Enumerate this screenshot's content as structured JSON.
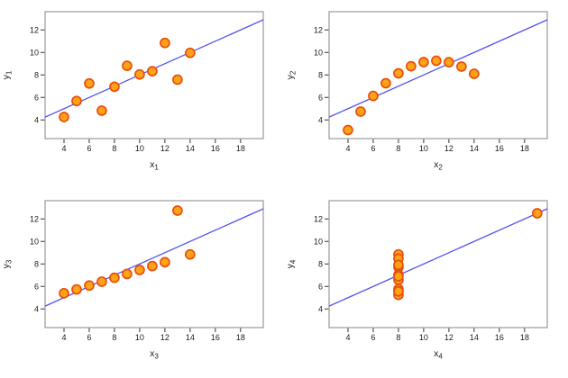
{
  "figure": {
    "title": "",
    "background": "#ffffff",
    "style": {
      "point_fill": "#ffa317",
      "point_stroke": "#e94f0d",
      "point_radius": 5,
      "point_stroke_width": 1.7,
      "line_color": "#5353f1",
      "line_width": 1.3,
      "box_color": "#999999",
      "tick_color": "#333333",
      "label_color": "#1a1a1a"
    }
  },
  "chart_data": [
    {
      "type": "scatter",
      "name": "anscombe-dataset-1",
      "x": [
        10,
        8,
        13,
        9,
        11,
        14,
        6,
        4,
        12,
        7,
        5
      ],
      "y": [
        8.04,
        6.95,
        7.58,
        8.81,
        8.33,
        9.96,
        7.24,
        4.26,
        10.84,
        4.82,
        5.68
      ],
      "xlabel_base": "x",
      "xlabel_sub": "1",
      "ylabel_base": "y",
      "ylabel_sub": "1",
      "xticks": [
        4,
        6,
        8,
        10,
        12,
        14,
        16,
        18
      ],
      "yticks": [
        4,
        6,
        8,
        10,
        12
      ],
      "xlim": [
        2.5,
        19.8
      ],
      "ylim": [
        2.34,
        13.62
      ],
      "grid": false,
      "regression_line": {
        "intercept": 3,
        "slope": 0.5
      }
    },
    {
      "type": "scatter",
      "name": "anscombe-dataset-2",
      "x": [
        10,
        8,
        13,
        9,
        11,
        14,
        6,
        4,
        12,
        7,
        5
      ],
      "y": [
        9.14,
        8.14,
        8.74,
        8.77,
        9.26,
        8.1,
        6.13,
        3.1,
        9.13,
        7.26,
        4.74
      ],
      "xlabel_base": "x",
      "xlabel_sub": "2",
      "ylabel_base": "y",
      "ylabel_sub": "2",
      "xticks": [
        4,
        6,
        8,
        10,
        12,
        14,
        16,
        18
      ],
      "yticks": [
        4,
        6,
        8,
        10,
        12
      ],
      "xlim": [
        2.5,
        19.8
      ],
      "ylim": [
        2.34,
        13.62
      ],
      "grid": false,
      "regression_line": {
        "intercept": 3,
        "slope": 0.5
      }
    },
    {
      "type": "scatter",
      "name": "anscombe-dataset-3",
      "x": [
        10,
        8,
        13,
        9,
        11,
        14,
        6,
        4,
        12,
        7,
        5
      ],
      "y": [
        7.46,
        6.77,
        12.74,
        7.11,
        7.81,
        8.84,
        6.08,
        5.39,
        8.15,
        6.42,
        5.73
      ],
      "xlabel_base": "x",
      "xlabel_sub": "3",
      "ylabel_base": "y",
      "ylabel_sub": "3",
      "xticks": [
        4,
        6,
        8,
        10,
        12,
        14,
        16,
        18
      ],
      "yticks": [
        4,
        6,
        8,
        10,
        12
      ],
      "xlim": [
        2.5,
        19.8
      ],
      "ylim": [
        2.34,
        13.62
      ],
      "grid": false,
      "regression_line": {
        "intercept": 3,
        "slope": 0.5
      }
    },
    {
      "type": "scatter",
      "name": "anscombe-dataset-4",
      "x": [
        8,
        8,
        8,
        8,
        8,
        8,
        8,
        19,
        8,
        8,
        8
      ],
      "y": [
        6.58,
        5.76,
        7.71,
        8.84,
        8.47,
        7.04,
        5.25,
        12.5,
        5.56,
        7.91,
        6.89
      ],
      "xlabel_base": "x",
      "xlabel_sub": "4",
      "ylabel_base": "y",
      "ylabel_sub": "4",
      "xticks": [
        4,
        6,
        8,
        10,
        12,
        14,
        16,
        18
      ],
      "yticks": [
        4,
        6,
        8,
        10,
        12
      ],
      "xlim": [
        2.5,
        19.8
      ],
      "ylim": [
        2.34,
        13.62
      ],
      "grid": false,
      "regression_line": {
        "intercept": 3,
        "slope": 0.5
      }
    }
  ]
}
